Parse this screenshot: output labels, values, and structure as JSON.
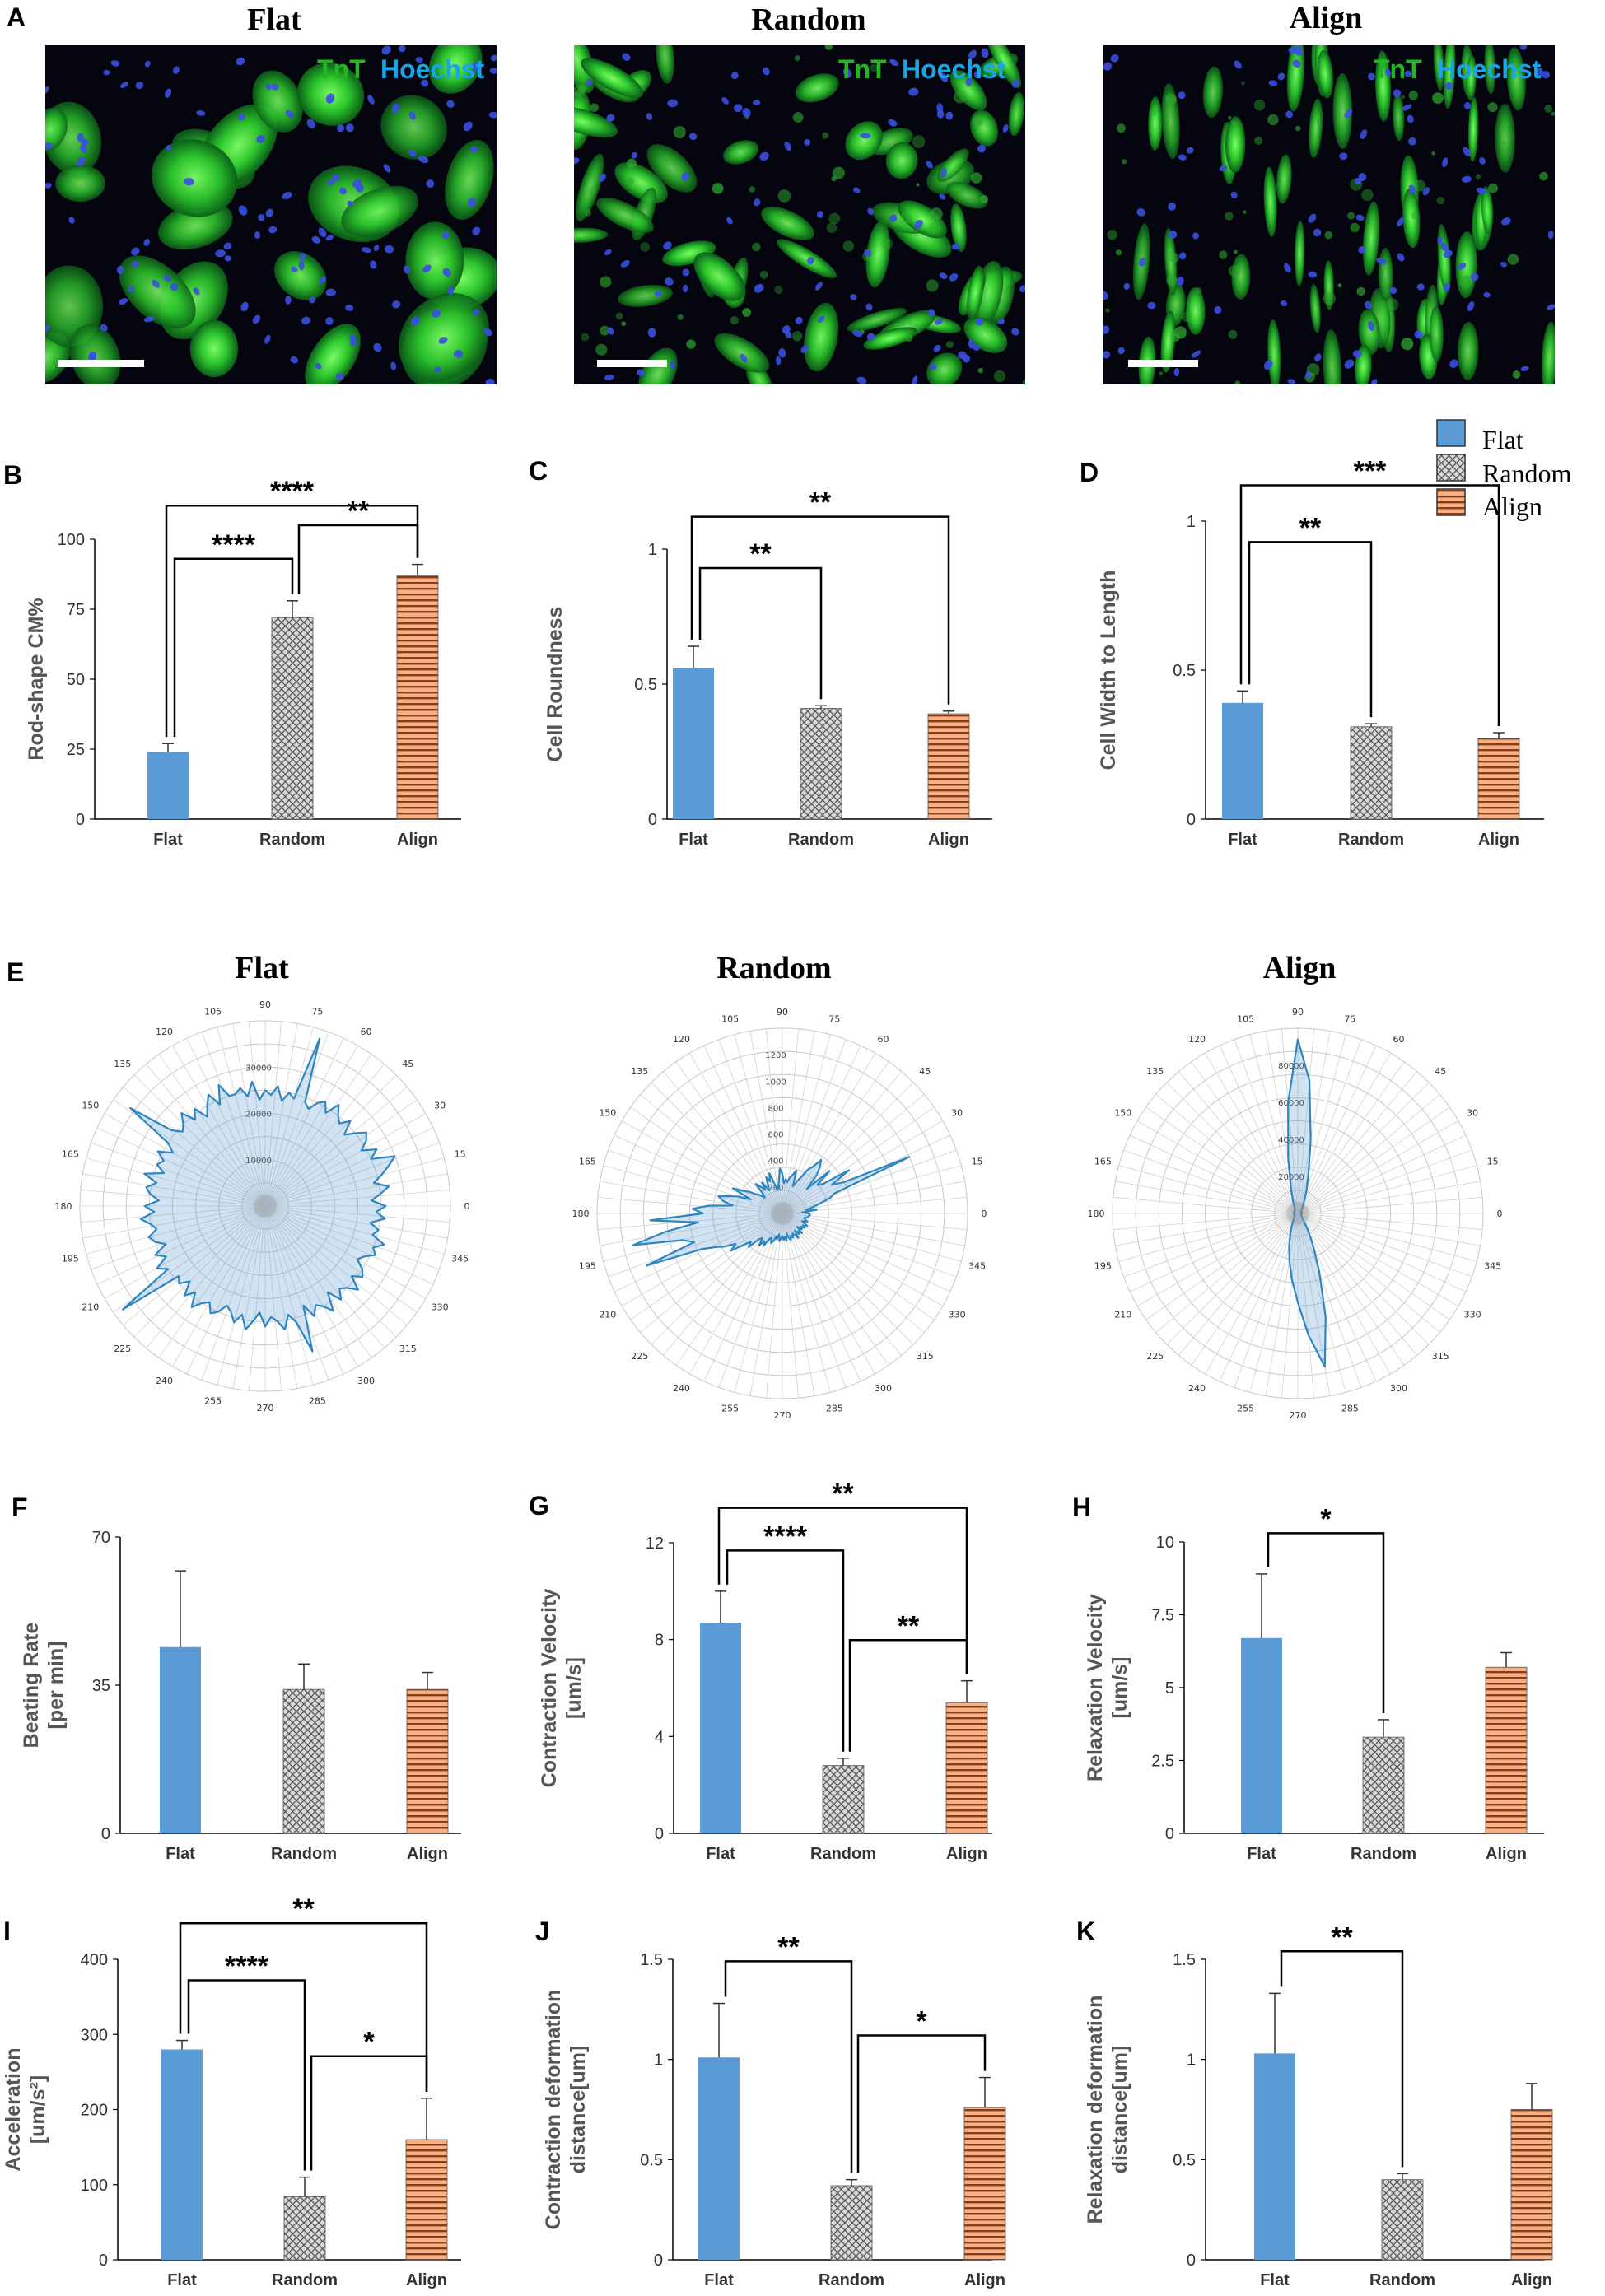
{
  "colors": {
    "flat": "#5b9bd5",
    "random": "#bfbfbf",
    "align": "#f4b183",
    "align_line": "#8b3a1a",
    "radar": "#2e86c1"
  },
  "panel_a": {
    "label": "A",
    "titles": [
      "Flat",
      "Random",
      "Align"
    ],
    "stain_tnt": "TnT",
    "stain_hoechst": "Hoechst"
  },
  "legend": {
    "items": [
      "Flat",
      "Random",
      "Align"
    ]
  },
  "panel_e": {
    "label": "E",
    "titles": [
      "Flat",
      "Random",
      "Align"
    ]
  },
  "chart_data": [
    {
      "id": "B",
      "type": "bar",
      "categories": [
        "Flat",
        "Random",
        "Align"
      ],
      "values": [
        24,
        72,
        87
      ],
      "errors": [
        3,
        6,
        4
      ],
      "ylabel_lines": [
        "Rod-shape CM%"
      ],
      "ylim": [
        0,
        100
      ],
      "yticks": [
        "0",
        "25",
        "50",
        "75",
        "100"
      ],
      "sig": [
        {
          "from": 0,
          "to": 2,
          "label": "****"
        },
        {
          "from": 0,
          "to": 1,
          "label": "****"
        },
        {
          "from": 1,
          "to": 2,
          "label": "**"
        }
      ]
    },
    {
      "id": "C",
      "type": "bar",
      "categories": [
        "Flat",
        "Random",
        "Align"
      ],
      "values": [
        0.56,
        0.41,
        0.39
      ],
      "errors": [
        0.08,
        0.01,
        0.01
      ],
      "ylabel_lines": [
        "Cell Roundness"
      ],
      "ylim": [
        0,
        1
      ],
      "yticks": [
        "0",
        "0.5",
        "1"
      ],
      "sig": [
        {
          "from": 0,
          "to": 2,
          "label": "**"
        },
        {
          "from": 0,
          "to": 1,
          "label": "**"
        }
      ]
    },
    {
      "id": "D",
      "type": "bar",
      "categories": [
        "Flat",
        "Random",
        "Align"
      ],
      "values": [
        0.39,
        0.31,
        0.27
      ],
      "errors": [
        0.04,
        0.01,
        0.02
      ],
      "ylabel_lines": [
        "Cell Width to Length"
      ],
      "ylim": [
        0,
        1
      ],
      "yticks": [
        "0",
        "0.5",
        "1"
      ],
      "sig": [
        {
          "from": 0,
          "to": 2,
          "label": "***"
        },
        {
          "from": 0,
          "to": 1,
          "label": "**"
        }
      ]
    },
    {
      "id": "F",
      "type": "bar",
      "categories": [
        "Flat",
        "Random",
        "Align"
      ],
      "values": [
        44,
        34,
        34
      ],
      "errors": [
        18,
        6,
        4
      ],
      "ylabel_lines": [
        "Beating Rate",
        "[per min]"
      ],
      "ylim": [
        0,
        70
      ],
      "yticks": [
        "0",
        "35",
        "70"
      ],
      "sig": []
    },
    {
      "id": "G",
      "type": "bar",
      "categories": [
        "Flat",
        "Random",
        "Align"
      ],
      "values": [
        8.7,
        2.8,
        5.4
      ],
      "errors": [
        1.3,
        0.3,
        0.9
      ],
      "ylabel_lines": [
        "Contraction Velocity",
        "[um/s]"
      ],
      "ylim": [
        0,
        12
      ],
      "yticks": [
        "0",
        "4",
        "8",
        "12"
      ],
      "sig": [
        {
          "from": 0,
          "to": 2,
          "label": "**"
        },
        {
          "from": 0,
          "to": 1,
          "label": "****"
        },
        {
          "from": 1,
          "to": 2,
          "label": "**"
        }
      ]
    },
    {
      "id": "H",
      "type": "bar",
      "categories": [
        "Flat",
        "Random",
        "Align"
      ],
      "values": [
        6.7,
        3.3,
        5.7
      ],
      "errors": [
        2.2,
        0.6,
        0.5
      ],
      "ylabel_lines": [
        "Relaxation Velocity",
        "[um/s]"
      ],
      "ylim": [
        0,
        10
      ],
      "yticks": [
        "0",
        "2.5",
        "5",
        "7.5",
        "10"
      ],
      "sig": [
        {
          "from": 0,
          "to": 1,
          "label": "*"
        }
      ]
    },
    {
      "id": "I",
      "type": "bar",
      "categories": [
        "Flat",
        "Random",
        "Align"
      ],
      "values": [
        280,
        84,
        160
      ],
      "errors": [
        12,
        26,
        55
      ],
      "ylabel_lines": [
        "Acceleration",
        "[um/s²]"
      ],
      "ylim": [
        0,
        400
      ],
      "yticks": [
        "0",
        "100",
        "200",
        "300",
        "400"
      ],
      "sig": [
        {
          "from": 0,
          "to": 2,
          "label": "**"
        },
        {
          "from": 0,
          "to": 1,
          "label": "****"
        },
        {
          "from": 1,
          "to": 2,
          "label": "*"
        }
      ]
    },
    {
      "id": "J",
      "type": "bar",
      "categories": [
        "Flat",
        "Random",
        "Align"
      ],
      "values": [
        1.01,
        0.37,
        0.76
      ],
      "errors": [
        0.27,
        0.03,
        0.15
      ],
      "ylabel_lines": [
        "Contraction deformation",
        "distance[um]"
      ],
      "ylim": [
        0,
        1.5
      ],
      "yticks": [
        "0",
        "0.5",
        "1",
        "1.5"
      ],
      "sig": [
        {
          "from": 0,
          "to": 1,
          "label": "**"
        },
        {
          "from": 1,
          "to": 2,
          "label": "*"
        }
      ]
    },
    {
      "id": "K",
      "type": "bar",
      "categories": [
        "Flat",
        "Random",
        "Align"
      ],
      "values": [
        1.03,
        0.4,
        0.75
      ],
      "errors": [
        0.3,
        0.03,
        0.13
      ],
      "ylabel_lines": [
        "Relaxation deformation",
        "distance[um]"
      ],
      "ylim": [
        0,
        1.5
      ],
      "yticks": [
        "0",
        "0.5",
        "1",
        "1.5"
      ],
      "sig": [
        {
          "from": 0,
          "to": 1,
          "label": "**"
        }
      ]
    },
    {
      "id": "E-Flat",
      "type": "radar",
      "title": "Flat",
      "angle_labels": [
        "0",
        "15",
        "30",
        "45",
        "60",
        "75",
        "90",
        "105",
        "120",
        "135",
        "150",
        "165",
        "180",
        "195",
        "210",
        "225",
        "240",
        "255",
        "270",
        "285",
        "300",
        "315",
        "330",
        "345"
      ],
      "rmax": 40000,
      "rticks": [
        "10000",
        "20000",
        "30000"
      ],
      "values": [
        26000,
        23000,
        25000,
        27000,
        24000,
        26000,
        28000,
        30000,
        25000,
        27000,
        24000,
        26000,
        27000,
        25000,
        23000,
        26000,
        24000,
        25000,
        27000,
        24000,
        26000,
        25000,
        23000,
        24000,
        38000,
        24000,
        25000,
        23000,
        26000,
        24000,
        25000,
        23000,
        27000,
        24000,
        26000,
        25000,
        25000,
        28000,
        24000,
        27000,
        25000,
        23000,
        26000,
        24000,
        27000,
        25000,
        24000,
        26000,
        36000,
        25000,
        23000,
        26000,
        24000,
        25000,
        23000,
        27000,
        24000,
        26000,
        25000,
        23000,
        26000,
        24000,
        27000,
        25000,
        24000,
        26000,
        25000,
        23000,
        26000,
        24000,
        27000,
        25000,
        38000,
        24000,
        25000,
        23000,
        26000,
        24000,
        27000,
        25000,
        24000,
        26000,
        25000,
        23000,
        24000,
        26000,
        24000,
        27000,
        25000,
        23000,
        26000,
        24000,
        25000,
        27000,
        24000,
        26000,
        33000,
        23000,
        26000,
        24000,
        25000,
        27000,
        23000,
        26000,
        24000,
        25000,
        27000,
        24000,
        26000,
        25000,
        23000,
        24000,
        26000,
        25000,
        27000,
        24000,
        25000,
        23000,
        26000,
        24000
      ]
    },
    {
      "id": "E-Random",
      "type": "radar",
      "title": "Random",
      "angle_labels": [
        "0",
        "15",
        "30",
        "45",
        "60",
        "75",
        "90",
        "105",
        "120",
        "135",
        "150",
        "165",
        "180",
        "195",
        "210",
        "225",
        "240",
        "255",
        "270",
        "285",
        "300",
        "315",
        "330",
        "345"
      ],
      "rmax": 1400,
      "rticks": [
        "200",
        "400",
        "600",
        "800",
        "1000",
        "1200"
      ],
      "values": [
        200,
        150,
        260,
        180,
        240,
        300,
        380,
        420,
        1050,
        520,
        430,
        600,
        380,
        340,
        480,
        260,
        390,
        450,
        500,
        420,
        380,
        300,
        260,
        220,
        340,
        300,
        280,
        240,
        260,
        230,
        300,
        340,
        250,
        200,
        180,
        240,
        320,
        260,
        300,
        240,
        200,
        280,
        220,
        260,
        300,
        200,
        180,
        220,
        250,
        300,
        340,
        420,
        260,
        360,
        420,
        500,
        460,
        380,
        560,
        680,
        600,
        1000,
        640,
        900,
        1150,
        780,
        700,
        1100,
        660,
        560,
        500,
        420,
        480,
        380,
        320,
        360,
        260,
        240,
        300,
        250,
        280,
        220,
        200,
        240,
        220,
        180,
        200,
        160,
        210,
        190,
        170,
        200,
        180,
        210,
        150,
        190,
        210,
        180,
        200,
        170,
        190,
        220,
        160,
        200,
        180,
        210,
        150,
        190,
        170,
        200,
        180,
        210,
        190,
        160,
        200,
        180,
        170,
        190,
        200,
        210
      ]
    },
    {
      "id": "E-Align",
      "type": "radar",
      "title": "Align",
      "angle_labels": [
        "0",
        "15",
        "30",
        "45",
        "60",
        "75",
        "90",
        "105",
        "120",
        "135",
        "150",
        "165",
        "180",
        "195",
        "210",
        "225",
        "240",
        "255",
        "270",
        "285",
        "300",
        "315",
        "330",
        "345"
      ],
      "rmax": 100000,
      "rticks": [
        "20000",
        "40000",
        "60000",
        "80000"
      ],
      "values": [
        2000,
        1800,
        2200,
        1900,
        2100,
        2300,
        2000,
        2400,
        2600,
        3000,
        3500,
        4500,
        6000,
        9000,
        14000,
        22000,
        40000,
        72000,
        94000,
        60000,
        30000,
        14000,
        8000,
        5000,
        3500,
        3000,
        2600,
        2200,
        2000,
        2400,
        2100,
        1900,
        2200,
        2000,
        1800,
        2100,
        1900,
        2200,
        2000,
        1800,
        2100,
        1900,
        2000,
        2200,
        2400,
        2800,
        3400,
        4200,
        5500,
        8000,
        12000,
        18000,
        26000,
        36000,
        48000,
        66000,
        84000,
        58000,
        34000,
        20000,
        12000,
        7000,
        4500,
        3300,
        2800,
        2400,
        2200,
        2000,
        2100,
        1900,
        2000,
        1800
      ]
    }
  ]
}
